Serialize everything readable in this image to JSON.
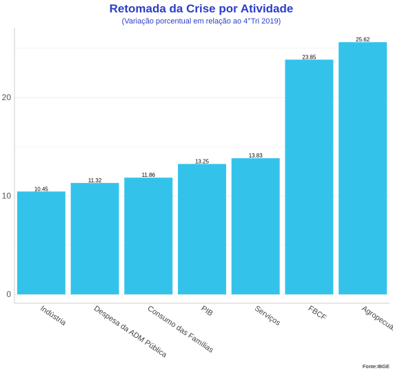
{
  "chart_data": {
    "type": "bar",
    "title": "Retomada da Crise por Atividade",
    "subtitle": "(Variação porcentual em relação ao 4°Tri 2019)",
    "categories": [
      "Indústria",
      "Despesa da ADM Pública",
      "Consumo das Famílias",
      "PIB",
      "Serviços",
      "FBCF",
      "Agropecuária"
    ],
    "values": [
      10.45,
      11.32,
      11.86,
      13.25,
      13.83,
      23.85,
      25.62
    ],
    "data_labels": [
      "10.45",
      "11.32",
      "11.86",
      "13.25",
      "13.83",
      "23.85",
      "25.62"
    ],
    "yticks": [
      0,
      10,
      20
    ],
    "ylim": [
      -0.9,
      27.1
    ],
    "xlabel": "",
    "ylabel": "",
    "grid": true,
    "source": "Fonte:IBGE",
    "colors": {
      "bar": "#33C3EA",
      "title": "#2B3EC7",
      "grid": "#EBEBEB",
      "axis": "#CCCCCC"
    }
  }
}
